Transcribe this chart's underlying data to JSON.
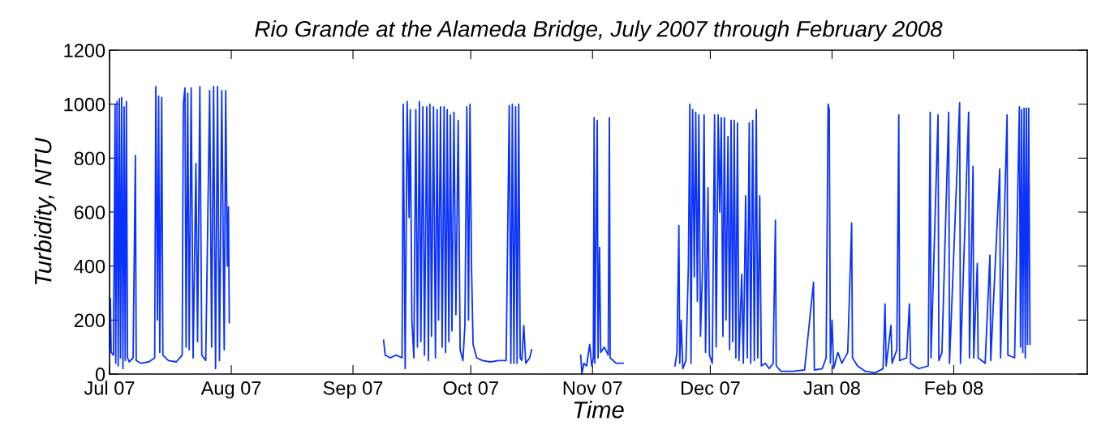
{
  "chart_data": {
    "type": "line",
    "title": "Rio Grande at the Alameda Bridge, July 2007 through February 2008",
    "xlabel": "Time",
    "ylabel": "Turbidity, NTU",
    "xlim": [
      "2007-07-01",
      "2008-03-06"
    ],
    "xticks": [
      {
        "value": "2007-07-01",
        "label": "Jul 07"
      },
      {
        "value": "2007-08-01",
        "label": "Aug 07"
      },
      {
        "value": "2007-09-01",
        "label": "Sep 07"
      },
      {
        "value": "2007-10-01",
        "label": "Oct 07"
      },
      {
        "value": "2007-11-01",
        "label": "Nov 07"
      },
      {
        "value": "2007-12-01",
        "label": "Dec 07"
      },
      {
        "value": "2008-01-01",
        "label": "Jan 08"
      },
      {
        "value": "2008-02-01",
        "label": "Feb 08"
      }
    ],
    "ylim": [
      0,
      1200
    ],
    "yticks": [
      0,
      200,
      400,
      600,
      800,
      1000,
      1200
    ],
    "grid": false,
    "legend": false,
    "marker": "none",
    "line_style": "solid",
    "series": [
      {
        "color": "#0a32ff",
        "x": [
          "2007-07-01T00:00",
          "2007-07-01T05:00",
          "2007-07-01T10:00",
          "2007-07-02T00:00",
          "2007-07-02T10:00",
          "2007-07-02T14:00",
          "2007-07-02T22:00",
          "2007-07-03T05:00",
          "2007-07-03T12:00",
          "2007-07-03T19:00",
          "2007-07-04T02:00",
          "2007-07-04T10:00",
          "2007-07-04T17:00",
          "2007-07-05T00:00",
          "2007-07-05T07:00",
          "2007-07-05T14:00",
          "2007-07-06T00:00",
          "2007-07-07T00:00",
          "2007-07-07T14:00",
          "2007-07-07T19:00",
          "2007-07-09T00:00",
          "2007-07-11T00:00",
          "2007-07-12T12:00",
          "2007-07-12T19:00",
          "2007-07-13T05:00",
          "2007-07-13T12:00",
          "2007-07-13T19:00",
          "2007-07-14T07:00",
          "2007-07-14T14:00",
          "2007-07-16T00:00",
          "2007-07-18T00:00",
          "2007-07-19T12:00",
          "2007-07-19T19:00",
          "2007-07-20T05:00",
          "2007-07-20T12:00",
          "2007-07-20T22:00",
          "2007-07-21T07:00",
          "2007-07-21T19:00",
          "2007-07-22T07:00",
          "2007-07-23T00:00",
          "2007-07-23T10:00",
          "2007-07-24T00:00",
          "2007-07-24T12:00",
          "2007-07-25T12:00",
          "2007-07-26T12:00",
          "2007-07-27T00:00",
          "2007-07-27T12:00",
          "2007-07-28T00:00",
          "2007-07-28T12:00",
          "2007-07-29T00:00",
          "2007-07-29T14:00",
          "2007-07-30T05:00",
          "2007-07-30T14:00",
          "2007-07-31T00:00",
          "2007-07-31T07:00",
          "2007-07-31T12:00",
          "2007-08-20T00:00",
          "2007-09-08T19:00",
          "2007-09-09T05:00",
          "2007-09-10T12:00",
          "2007-09-12T00:00",
          "2007-09-13T12:00",
          "2007-09-13T19:00",
          "2007-09-14T07:00",
          "2007-09-14T19:00",
          "2007-09-15T07:00",
          "2007-09-15T14:00",
          "2007-09-16T00:00",
          "2007-09-16T12:00",
          "2007-09-17T00:00",
          "2007-09-17T10:00",
          "2007-09-17T22:00",
          "2007-09-18T07:00",
          "2007-09-18T19:00",
          "2007-09-19T05:00",
          "2007-09-19T19:00",
          "2007-09-20T05:00",
          "2007-09-20T14:00",
          "2007-09-21T00:00",
          "2007-09-21T12:00",
          "2007-09-22T00:00",
          "2007-09-22T10:00",
          "2007-09-22T19:00",
          "2007-09-23T07:00",
          "2007-09-23T17:00",
          "2007-09-24T05:00",
          "2007-09-24T14:00",
          "2007-09-25T00:00",
          "2007-09-25T10:00",
          "2007-09-25T19:00",
          "2007-09-26T05:00",
          "2007-09-26T17:00",
          "2007-09-27T05:00",
          "2007-09-27T19:00",
          "2007-09-28T07:00",
          "2007-09-29T00:00",
          "2007-09-29T12:00",
          "2007-09-30T00:00",
          "2007-09-30T10:00",
          "2007-09-30T19:00",
          "2007-10-01T05:00",
          "2007-10-01T14:00",
          "2007-10-02T12:00",
          "2007-10-04T00:00",
          "2007-10-06T00:00",
          "2007-10-08T00:00",
          "2007-10-10T00:00",
          "2007-10-10T19:00",
          "2007-10-11T05:00",
          "2007-10-11T14:00",
          "2007-10-12T00:00",
          "2007-10-12T10:00",
          "2007-10-12T19:00",
          "2007-10-13T05:00",
          "2007-10-13T14:00",
          "2007-10-14T00:00",
          "2007-10-14T12:00",
          "2007-10-15T00:00",
          "2007-10-16T00:00",
          "2007-10-16T12:00",
          "2007-10-22T00:00",
          "2007-10-29T00:00",
          "2007-10-29T07:00",
          "2007-10-29T19:00",
          "2007-10-30T12:00",
          "2007-10-31T07:00",
          "2007-10-31T19:00",
          "2007-11-01T05:00",
          "2007-11-01T10:00",
          "2007-11-01T14:00",
          "2007-11-02T05:00",
          "2007-11-02T10:00",
          "2007-11-02T19:00",
          "2007-11-03T02:00",
          "2007-11-04T00:00",
          "2007-11-05T00:00",
          "2007-11-05T07:00",
          "2007-11-05T12:00",
          "2007-11-07T00:00",
          "2007-11-08T19:00",
          "2007-11-15T00:00",
          "2007-11-22T00:00",
          "2007-11-22T12:00",
          "2007-11-23T00:00",
          "2007-11-23T05:00",
          "2007-11-23T14:00",
          "2007-11-24T00:00",
          "2007-11-24T19:00",
          "2007-11-25T10:00",
          "2007-11-25T19:00",
          "2007-11-26T02:00",
          "2007-11-26T12:00",
          "2007-11-26T22:00",
          "2007-11-27T07:00",
          "2007-11-27T17:00",
          "2007-11-28T02:00",
          "2007-11-28T12:00",
          "2007-11-29T00:00",
          "2007-11-29T10:00",
          "2007-11-29T19:00",
          "2007-11-30T10:00",
          "2007-11-30T19:00",
          "2007-12-01T12:00",
          "2007-12-02T02:00",
          "2007-12-02T12:00",
          "2007-12-03T00:00",
          "2007-12-03T10:00",
          "2007-12-03T19:00",
          "2007-12-04T05:00",
          "2007-12-04T14:00",
          "2007-12-05T00:00",
          "2007-12-05T12:00",
          "2007-12-05T22:00",
          "2007-12-06T07:00",
          "2007-12-06T17:00",
          "2007-12-07T02:00",
          "2007-12-07T12:00",
          "2007-12-07T22:00",
          "2007-12-08T07:00",
          "2007-12-09T00:00",
          "2007-12-09T10:00",
          "2007-12-10T00:00",
          "2007-12-10T10:00",
          "2007-12-10T22:00",
          "2007-12-11T07:00",
          "2007-12-11T19:00",
          "2007-12-12T05:00",
          "2007-12-12T17:00",
          "2007-12-13T02:00",
          "2007-12-13T14:00",
          "2007-12-14T00:00",
          "2007-12-15T00:00",
          "2007-12-16T00:00",
          "2007-12-17T00:00",
          "2007-12-17T14:00",
          "2007-12-17T19:00",
          "2007-12-19T00:00",
          "2007-12-22T00:00",
          "2007-12-25T00:00",
          "2007-12-27T07:00",
          "2007-12-27T12:00",
          "2007-12-29T12:00",
          "2007-12-30T12:00",
          "2007-12-31T00:00",
          "2007-12-31T07:00",
          "2007-12-31T14:00",
          "2008-01-01T00:00",
          "2008-01-01T10:00",
          "2008-01-02T12:00",
          "2008-01-03T12:00",
          "2008-01-05T00:00",
          "2008-01-06T00:00",
          "2008-01-06T05:00",
          "2008-01-07T12:00",
          "2008-01-09T12:00",
          "2008-01-12T00:00",
          "2008-01-14T00:00",
          "2008-01-14T12:00",
          "2008-01-14T19:00",
          "2008-01-16T00:00",
          "2008-01-16T07:00",
          "2008-01-17T12:00",
          "2008-01-18T00:00",
          "2008-01-18T05:00",
          "2008-01-20T00:00",
          "2008-01-20T17:00",
          "2008-01-21T00:00",
          "2008-01-23T00:00",
          "2008-01-25T12:00",
          "2008-01-26T00:00",
          "2008-01-26T05:00",
          "2008-01-28T00:00",
          "2008-01-28T05:00",
          "2008-01-29T00:00",
          "2008-01-30T17:00",
          "2008-01-30T22:00",
          "2008-02-02T12:00",
          "2008-02-02T17:00",
          "2008-02-04T19:00",
          "2008-02-05T00:00",
          "2008-02-05T22:00",
          "2008-02-06T02:00",
          "2008-02-07T00:00",
          "2008-02-07T05:00",
          "2008-02-09T00:00",
          "2008-02-10T05:00",
          "2008-02-10T10:00",
          "2008-02-12T17:00",
          "2008-02-12T22:00",
          "2008-02-14T14:00",
          "2008-02-14T19:00",
          "2008-02-16T12:00",
          "2008-02-17T17:00",
          "2008-02-18T00:00",
          "2008-02-18T07:00",
          "2008-02-18T14:00",
          "2008-02-18T22:00",
          "2008-02-19T05:00",
          "2008-02-19T12:00",
          "2008-02-19T19:00",
          "2008-02-20T02:00",
          "2008-02-20T10:00"
        ],
        "values": [
          100,
          280,
          80,
          70,
          1000,
          40,
          1010,
          30,
          1020,
          60,
          1025,
          20,
          990,
          50,
          1010,
          60,
          45,
          60,
          810,
          50,
          40,
          45,
          60,
          1065,
          200,
          1030,
          80,
          1025,
          70,
          50,
          45,
          70,
          1000,
          1060,
          100,
          1040,
          90,
          1060,
          60,
          780,
          120,
          1065,
          70,
          50,
          1050,
          100,
          1065,
          20,
          1065,
          50,
          1050,
          90,
          1050,
          400,
          620,
          190,
          null,
          125,
          70,
          60,
          70,
          60,
          1000,
          20,
          1010,
          580,
          980,
          200,
          60,
          980,
          100,
          1010,
          120,
          990,
          70,
          990,
          50,
          1000,
          140,
          990,
          60,
          980,
          200,
          990,
          100,
          990,
          80,
          980,
          120,
          960,
          160,
          970,
          220,
          940,
          90,
          50,
          180,
          990,
          200,
          1000,
          380,
          110,
          60,
          50,
          45,
          50,
          50,
          995,
          40,
          1000,
          40,
          990,
          40,
          1000,
          60,
          50,
          180,
          40,
          60,
          90,
          null,
          70,
          0,
          40,
          30,
          110,
          30,
          60,
          950,
          40,
          940,
          60,
          470,
          80,
          100,
          70,
          950,
          60,
          40,
          40,
          null,
          30,
          80,
          550,
          40,
          200,
          20,
          50,
          400,
          1000,
          40,
          980,
          360,
          970,
          270,
          960,
          140,
          380,
          960,
          80,
          690,
          70,
          40,
          960,
          100,
          960,
          600,
          950,
          140,
          950,
          200,
          880,
          90,
          940,
          120,
          940,
          60,
          930,
          50,
          370,
          40,
          660,
          60,
          930,
          40,
          940,
          50,
          980,
          60,
          660,
          30,
          40,
          20,
          40,
          570,
          30,
          10,
          10,
          15,
          340,
          15,
          20,
          60,
          1000,
          980,
          40,
          200,
          20,
          80,
          40,
          80,
          560,
          60,
          30,
          10,
          5,
          20,
          260,
          30,
          180,
          40,
          90,
          960,
          50,
          60,
          260,
          40,
          20,
          30,
          970,
          60,
          960,
          50,
          80,
          970,
          40,
          1005,
          40,
          970,
          60,
          770,
          60,
          410,
          60,
          40,
          440,
          50,
          760,
          60,
          960,
          70,
          60,
          990,
          100,
          980,
          80,
          985,
          60,
          985,
          110,
          985,
          110
        ]
      }
    ]
  }
}
